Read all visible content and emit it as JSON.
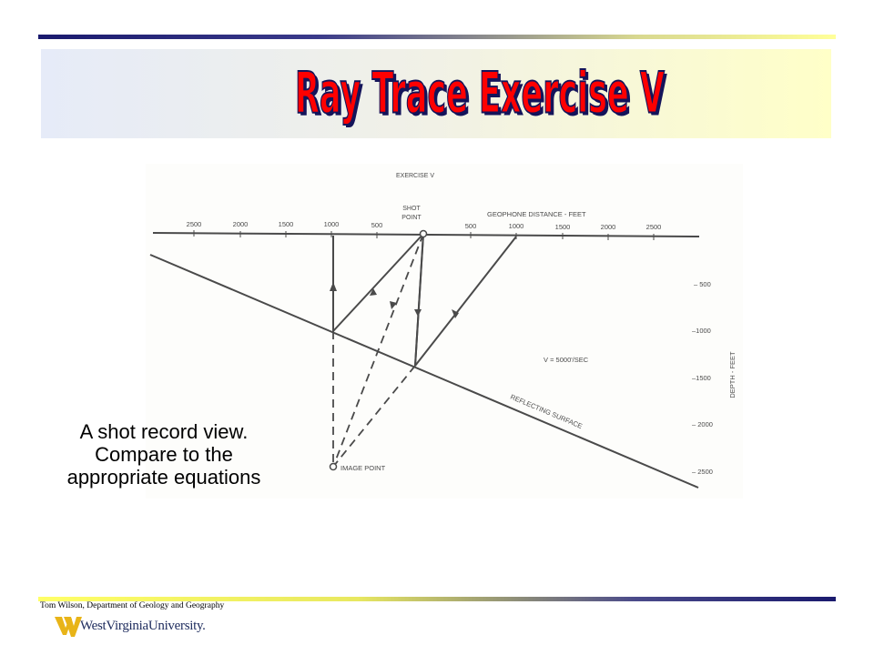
{
  "slide": {
    "title": "Ray Trace Exercise V",
    "caption": "A shot record view. Compare to the appropriate equations",
    "footer_credit": "Tom Wilson, Department of Geology and Geography",
    "logo_text": "WestVirginiaUniversity."
  },
  "diagram": {
    "heading": "EXERCISE V",
    "shot_point_label_line1": "SHOT",
    "shot_point_label_line2": "POINT",
    "geophone_axis_label": "GEOPHONE DISTANCE - FEET",
    "left_distance_ticks": [
      "2500",
      "2000",
      "1500",
      "1000",
      "500"
    ],
    "right_distance_ticks": [
      "500",
      "1000",
      "1500",
      "2000",
      "2500"
    ],
    "depth_ticks": [
      "– 500",
      "–1000",
      "–1500",
      "– 2000",
      "– 2500"
    ],
    "depth_axis_label": "DEPTH - FEET",
    "velocity_label": "V = 5000'/SEC",
    "reflector_label": "REFLECTING SURFACE",
    "image_point_label": "IMAGE POINT"
  },
  "colors": {
    "title_fill": "#ff0000",
    "title_shadow": "#14145a",
    "line_color": "#4a4a4a",
    "rule_dark": "#1a1a6e",
    "rule_light": "#ffff66",
    "logo_gold": "#e8b418",
    "logo_navy": "#1c2a5c"
  }
}
